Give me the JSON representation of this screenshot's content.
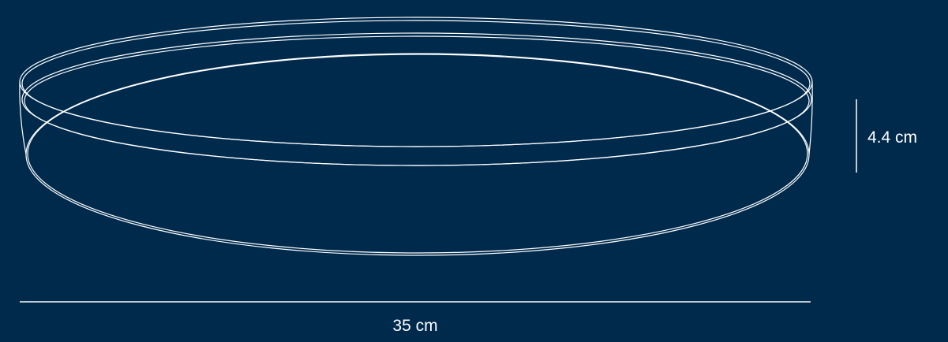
{
  "colors": {
    "background": "#002a4c",
    "line": "#ffffff"
  },
  "dimensions": {
    "height_label": "4.4 cm",
    "width_label": "35 cm"
  }
}
